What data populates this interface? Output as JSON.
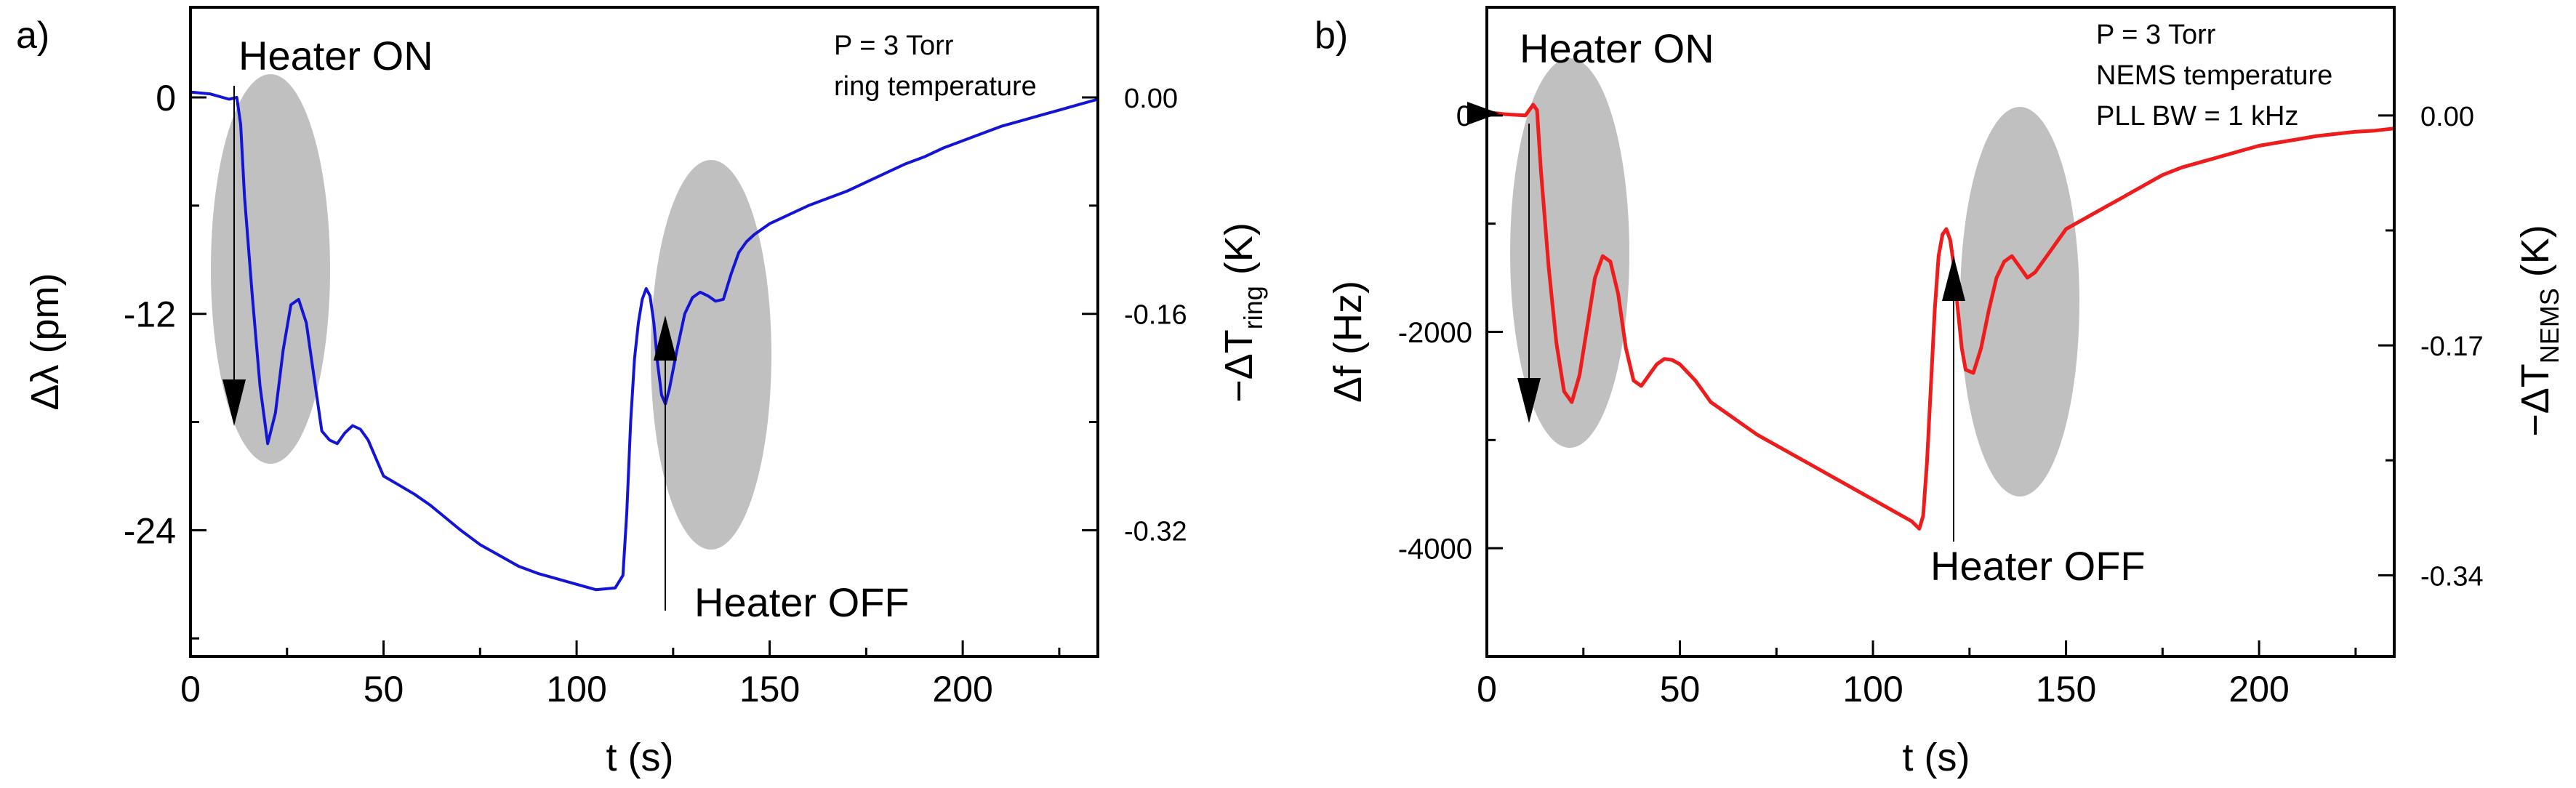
{
  "chart_data": [
    {
      "type": "line",
      "panel_label": "a)",
      "title": "",
      "xlabel": "t (s)",
      "ylabel": "Δλ (pm)",
      "y2label_main": "−ΔT",
      "y2label_sub": "ring",
      "y2label_unit": " (K)",
      "xlim": [
        0,
        235
      ],
      "ylim": [
        -31,
        5
      ],
      "xticks": [
        0,
        50,
        100,
        150,
        200
      ],
      "xtick_labels": [
        "0",
        "50",
        "100",
        "150",
        "200"
      ],
      "yticks": [
        0,
        -12,
        -24
      ],
      "ytick_labels": [
        "0",
        "-12",
        "-24"
      ],
      "y2ticks": [
        0,
        -12,
        -24
      ],
      "y2tick_labels": [
        "0.00",
        "-0.16",
        "-0.32"
      ],
      "series": [
        {
          "name": "ring",
          "color": "#1414d6",
          "x": [
            0,
            5,
            10,
            12,
            13,
            14,
            16,
            18,
            20,
            22,
            24,
            26,
            28,
            30,
            32,
            34,
            36,
            38,
            40,
            42,
            44,
            46,
            48,
            50,
            54,
            58,
            62,
            66,
            70,
            75,
            80,
            85,
            90,
            95,
            100,
            105,
            110,
            112,
            113,
            114,
            115,
            116,
            117,
            118,
            119,
            120,
            121,
            122,
            123,
            124,
            126,
            128,
            130,
            132,
            134,
            136,
            138,
            140,
            142,
            144,
            146,
            148,
            150,
            155,
            160,
            165,
            170,
            175,
            180,
            185,
            190,
            195,
            200,
            205,
            210,
            215,
            220,
            225,
            230,
            235
          ],
          "values": [
            0.3,
            0.2,
            -0.1,
            0.0,
            -1.5,
            -5.5,
            -11.0,
            -16.0,
            -19.2,
            -17.5,
            -14.0,
            -11.5,
            -11.2,
            -12.5,
            -15.5,
            -18.5,
            -19.0,
            -19.2,
            -18.6,
            -18.2,
            -18.4,
            -19.0,
            -20.0,
            -21.0,
            -21.5,
            -22.0,
            -22.6,
            -23.3,
            -24.0,
            -24.8,
            -25.4,
            -26.0,
            -26.4,
            -26.7,
            -27.0,
            -27.3,
            -27.2,
            -26.5,
            -23.0,
            -18.0,
            -14.5,
            -12.5,
            -11.2,
            -10.6,
            -11.0,
            -12.5,
            -14.8,
            -16.5,
            -17.0,
            -16.2,
            -14.0,
            -12.0,
            -11.1,
            -10.8,
            -11.0,
            -11.3,
            -11.2,
            -9.8,
            -8.6,
            -8.0,
            -7.6,
            -7.3,
            -7.0,
            -6.5,
            -6.0,
            -5.6,
            -5.2,
            -4.7,
            -4.2,
            -3.7,
            -3.3,
            -2.8,
            -2.4,
            -2.0,
            -1.6,
            -1.3,
            -1.0,
            -0.7,
            -0.4,
            -0.1
          ]
        }
      ],
      "annotations": {
        "heater_on": "Heater ON",
        "heater_off": "Heater OFF",
        "pressure": "P = 3 Torr",
        "measurement": "ring temperature"
      }
    },
    {
      "type": "line",
      "panel_label": "b)",
      "title": "",
      "xlabel": "t (s)",
      "ylabel": "Δf (Hz)",
      "y2label_main": "−ΔT",
      "y2label_sub": "NEMS",
      "y2label_unit": " (K)",
      "xlim": [
        0,
        235
      ],
      "ylim": [
        -5000,
        1000
      ],
      "xticks": [
        0,
        50,
        100,
        150,
        200
      ],
      "xtick_labels": [
        "0",
        "50",
        "100",
        "150",
        "200"
      ],
      "yticks": [
        0,
        -2000,
        -4000
      ],
      "ytick_labels": [
        "0",
        "-2000",
        "-4000"
      ],
      "y2ticks": [
        0,
        -2125,
        -4250
      ],
      "y2tick_labels": [
        "0.00",
        "-0.17",
        "-0.34"
      ],
      "series": [
        {
          "name": "NEMS",
          "color": "#ee1c1c",
          "x": [
            0,
            5,
            10,
            12,
            13,
            14,
            16,
            18,
            20,
            22,
            24,
            26,
            28,
            30,
            32,
            34,
            36,
            38,
            40,
            42,
            44,
            46,
            48,
            50,
            54,
            58,
            62,
            66,
            70,
            75,
            80,
            85,
            90,
            95,
            100,
            105,
            110,
            112,
            113,
            114,
            115,
            116,
            117,
            118,
            119,
            120,
            121,
            122,
            123,
            124,
            126,
            128,
            130,
            132,
            134,
            136,
            138,
            140,
            142,
            144,
            146,
            148,
            150,
            155,
            160,
            165,
            170,
            175,
            180,
            185,
            190,
            195,
            200,
            205,
            210,
            215,
            220,
            225,
            230,
            235
          ],
          "values": [
            30,
            10,
            0,
            100,
            50,
            -500,
            -1400,
            -2100,
            -2550,
            -2650,
            -2400,
            -1950,
            -1500,
            -1300,
            -1350,
            -1650,
            -2150,
            -2450,
            -2500,
            -2400,
            -2300,
            -2250,
            -2260,
            -2300,
            -2450,
            -2650,
            -2750,
            -2850,
            -2950,
            -3050,
            -3150,
            -3250,
            -3350,
            -3450,
            -3550,
            -3650,
            -3750,
            -3820,
            -3700,
            -3200,
            -2500,
            -1800,
            -1300,
            -1100,
            -1050,
            -1150,
            -1400,
            -1800,
            -2150,
            -2350,
            -2380,
            -2150,
            -1800,
            -1500,
            -1350,
            -1300,
            -1400,
            -1500,
            -1450,
            -1350,
            -1250,
            -1150,
            -1050,
            -950,
            -850,
            -750,
            -650,
            -550,
            -480,
            -430,
            -380,
            -330,
            -280,
            -250,
            -220,
            -190,
            -170,
            -150,
            -140,
            -120
          ]
        }
      ],
      "annotations": {
        "heater_on": "Heater ON",
        "heater_off": "Heater OFF",
        "pressure": "P = 3 Torr",
        "measurement": "NEMS temperature",
        "bandwidth": "PLL BW = 1 kHz"
      }
    }
  ]
}
